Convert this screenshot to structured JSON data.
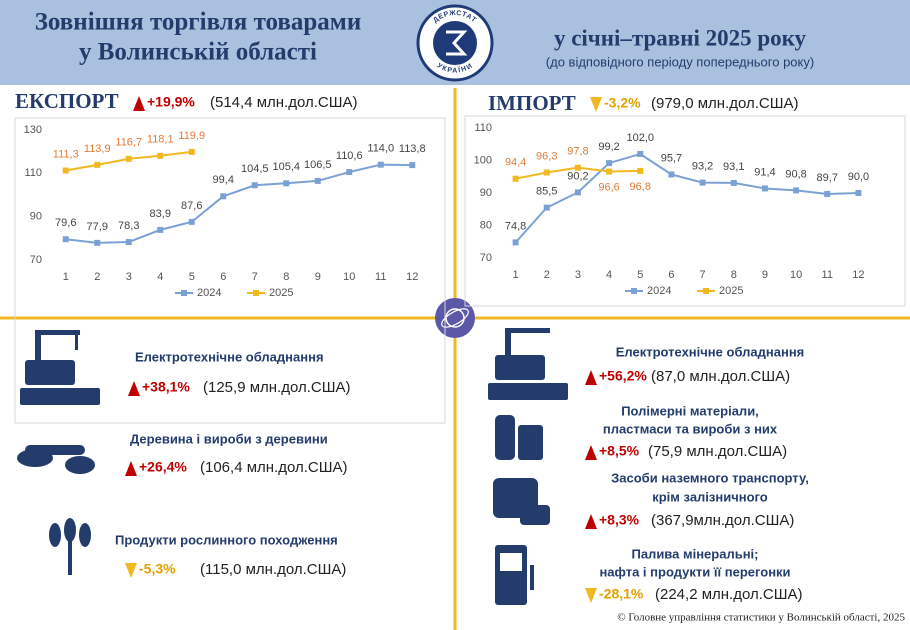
{
  "header": {
    "title": [
      "Зовнішня торгівля товарами",
      "у Волинській області"
    ],
    "period": "у січні–травні 2025 року",
    "note": "(до відповідного періоду попереднього року)",
    "logo": [
      "ДЕРЖСТАТ",
      "УКРАЇНИ"
    ]
  },
  "export": {
    "title": "ЕКСПОРТ",
    "change": "+19,9%",
    "amount": "(514,4 млн.дол.США)"
  },
  "import": {
    "title": "ІМПОРТ",
    "change": "-3,2%",
    "amount": "(979,0 млн.дол.США)"
  },
  "chart_data": [
    {
      "type": "line",
      "categories": [
        "1",
        "2",
        "3",
        "4",
        "5",
        "6",
        "7",
        "8",
        "9",
        "10",
        "11",
        "12"
      ],
      "ylim": [
        70,
        130
      ],
      "yticks": [
        70,
        90,
        110,
        130
      ],
      "grid": false,
      "legend": "bottom",
      "series": [
        {
          "name": "2024",
          "color": "#7ba1d4",
          "values": [
            79.6,
            77.9,
            78.3,
            83.9,
            87.6,
            99.4,
            104.5,
            105.4,
            106.5,
            110.6,
            114.0,
            113.8
          ],
          "value_labels": [
            "79,6",
            "77,9",
            "78,3",
            "83,9",
            "87,6",
            "99,4",
            "104,5",
            "105,4",
            "106,5",
            "110,6",
            "114,0",
            "113,8"
          ]
        },
        {
          "name": "2025",
          "color": "#f2b820",
          "values": [
            111.3,
            113.9,
            116.7,
            118.1,
            119.9,
            null,
            null,
            null,
            null,
            null,
            null,
            null
          ],
          "value_labels": [
            "111,3",
            "113,9",
            "116,7",
            "118,1",
            "119,9",
            null,
            null,
            null,
            null,
            null,
            null,
            null
          ]
        }
      ]
    },
    {
      "type": "line",
      "categories": [
        "1",
        "2",
        "3",
        "4",
        "5",
        "6",
        "7",
        "8",
        "9",
        "10",
        "11",
        "12"
      ],
      "ylim": [
        70,
        110
      ],
      "yticks": [
        70,
        80,
        90,
        100,
        110
      ],
      "grid": false,
      "legend": "bottom",
      "series": [
        {
          "name": "2024",
          "color": "#7ba1d4",
          "values": [
            74.8,
            85.5,
            90.2,
            99.2,
            102.0,
            95.7,
            93.2,
            93.1,
            91.4,
            90.8,
            89.7,
            90.0
          ],
          "value_labels": [
            "74,8",
            "85,5",
            "90,2",
            "99,2",
            "102,0",
            "95,7",
            "93,2",
            "93,1",
            "91,4",
            "90,8",
            "89,7",
            "90,0"
          ]
        },
        {
          "name": "2025",
          "color": "#f2b820",
          "values": [
            94.4,
            96.3,
            97.8,
            96.6,
            96.8,
            null,
            null,
            null,
            null,
            null,
            null,
            null
          ],
          "value_labels": [
            "94,4",
            "96,3",
            "97,8",
            "96,6",
            "96,8",
            null,
            null,
            null,
            null,
            null,
            null,
            null
          ]
        }
      ]
    }
  ],
  "export_items": [
    {
      "name": [
        "Електротехнічне обладнання"
      ],
      "change": "+38,1%",
      "amount": "(125,9 млн.дол.США)"
    },
    {
      "name": [
        "Деревина і вироби з деревини"
      ],
      "change": "+26,4%",
      "amount": "(106,4 млн.дол.США)"
    },
    {
      "name": [
        "Продукти рослинного походження"
      ],
      "change": "-5,3%",
      "amount": "(115,0 млн.дол.США)"
    }
  ],
  "import_items": [
    {
      "name": [
        "Електротехнічне обладнання"
      ],
      "change": "+56,2%",
      "amount": "(87,0 млн.дол.США)"
    },
    {
      "name": [
        "Полімерні матеріали,",
        "пластмаси та вироби з них"
      ],
      "change": "+8,5%",
      "amount": "(75,9 млн.дол.США)"
    },
    {
      "name": [
        "Засоби наземного транспорту,",
        "крім залізничного"
      ],
      "change": "+8,3%",
      "amount": "(367,9млн.дол.США)"
    },
    {
      "name": [
        "Палива мінеральні;",
        "нафта і продукти її перегонки"
      ],
      "change": "-28,1%",
      "amount": "(224,2 млн.дол.США)"
    }
  ],
  "footer": "© Головне управління статистики у Волинській області, 2025"
}
